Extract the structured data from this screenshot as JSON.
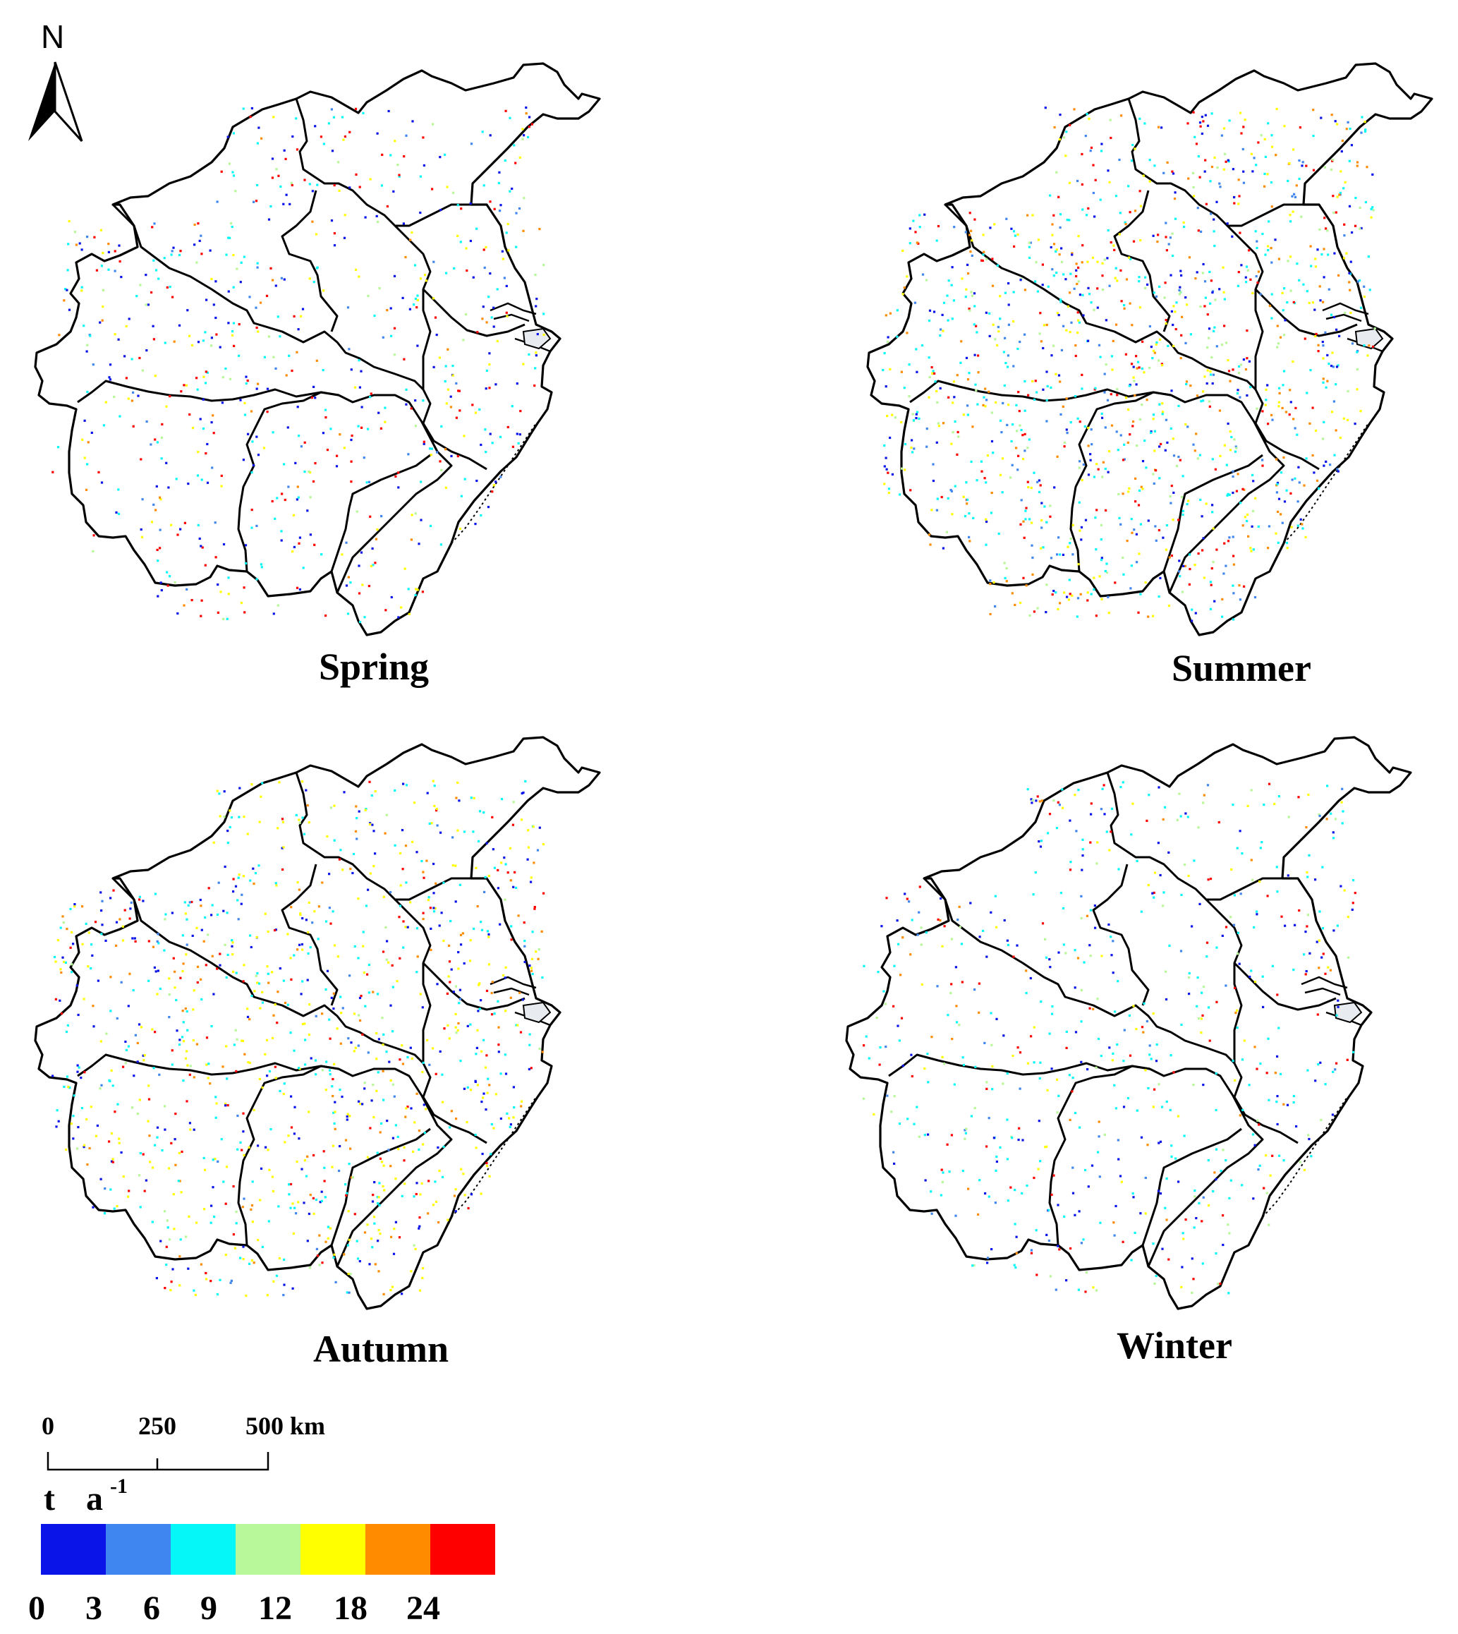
{
  "north_arrow": {
    "label": "N"
  },
  "panels": [
    {
      "id": "spring",
      "label": "Spring"
    },
    {
      "id": "summer",
      "label": "Summer"
    },
    {
      "id": "autumn",
      "label": "Autumn"
    },
    {
      "id": "winter",
      "label": "Winter"
    }
  ],
  "scale_bar": {
    "ticks": [
      "0",
      "250",
      "500 km"
    ]
  },
  "legend": {
    "unit": "t",
    "unit2": "a",
    "unit_exp": "-1",
    "colors": [
      "#0a14e8",
      "#3f86f0",
      "#05f7f7",
      "#b8f79a",
      "#ffff00",
      "#ff8c00",
      "#ff0000"
    ],
    "tick_labels": [
      "0",
      "3",
      "6",
      "9",
      "12",
      "18",
      "24"
    ]
  }
}
